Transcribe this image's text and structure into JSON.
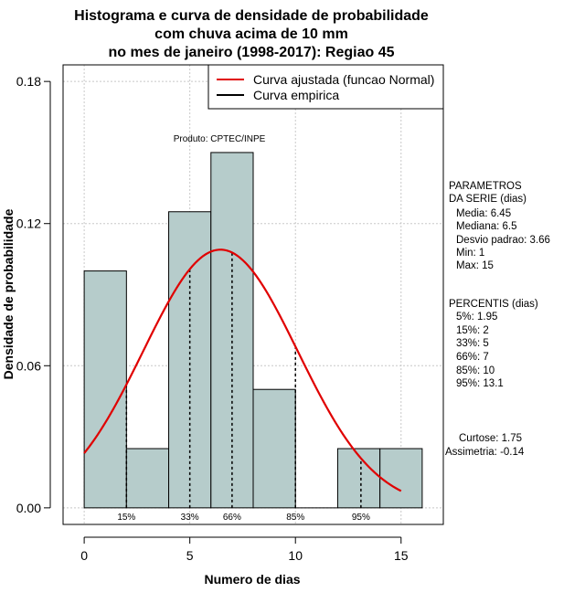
{
  "chart_data": {
    "type": "histogram",
    "title_lines": [
      "Histograma e curva de densidade de probabilidade",
      "com chuva acima de 10 mm",
      "no mes de janeiro (1998-2017): Regiao 45"
    ],
    "xlabel": "Numero de dias",
    "ylabel": "Densidade de probabilidade",
    "xlim": [
      -1,
      17
    ],
    "ylim": [
      -0.007,
      0.187
    ],
    "xticks": [
      0,
      5,
      10,
      15
    ],
    "yticks": [
      0.0,
      0.06,
      0.12,
      0.18
    ],
    "ytick_labels": [
      "0.00",
      "0.06",
      "0.12",
      "0.18"
    ],
    "bins": [
      {
        "from": 0,
        "to": 2,
        "density": 0.1
      },
      {
        "from": 2,
        "to": 4,
        "density": 0.025
      },
      {
        "from": 4,
        "to": 6,
        "density": 0.125
      },
      {
        "from": 6,
        "to": 8,
        "density": 0.15
      },
      {
        "from": 8,
        "to": 10,
        "density": 0.05
      },
      {
        "from": 10,
        "to": 12,
        "density": 0.0
      },
      {
        "from": 12,
        "to": 14,
        "density": 0.025
      },
      {
        "from": 14,
        "to": 16,
        "density": 0.025
      }
    ],
    "bar_color": "#b6cccb",
    "normal_curve": {
      "mean": 6.45,
      "sd": 3.66,
      "x_from": 0,
      "x_to": 15,
      "color": "#e00000"
    },
    "percentile_lines": [
      {
        "label": "15%",
        "x": 2
      },
      {
        "label": "33%",
        "x": 5
      },
      {
        "label": "66%",
        "x": 7
      },
      {
        "label": "85%",
        "x": 10
      },
      {
        "label": "95%",
        "x": 13.1
      }
    ],
    "legend": [
      {
        "label": "Curva ajustada (funcao Normal)",
        "color": "#e00000"
      },
      {
        "label": "Curva empirica",
        "color": "#000000"
      }
    ],
    "source_note": "Produto: CPTEC/INPE",
    "grid": true
  },
  "side_panel": {
    "params_lines": [
      "PARAMETROS",
      "DA SERIE (dias)",
      "Media: 6.45",
      "Mediana: 6.5",
      "Desvio padrao: 3.66",
      "Min: 1",
      "Max: 15"
    ],
    "percentis_lines": [
      "PERCENTIS (dias)",
      "5%: 1.95",
      "15%: 2",
      "33%: 5",
      "66%: 7",
      "85%: 10",
      "95%: 13.1"
    ],
    "stats_lines": [
      "Curtose: 1.75",
      "Assimetria: -0.14"
    ]
  }
}
